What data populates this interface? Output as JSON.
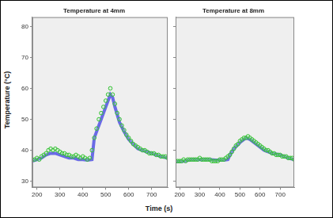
{
  "chart_data": [
    {
      "type": "scatter",
      "title": "Temperature at 4mm",
      "x_label": "Time (s)",
      "y_label": "Temperature (°C)",
      "xlim": [
        180,
        770
      ],
      "xticks": [
        200,
        300,
        400,
        500,
        600,
        700
      ],
      "ylim": [
        28,
        83
      ],
      "yticks": [
        30,
        40,
        50,
        60,
        70,
        80
      ],
      "grid": false,
      "series": [
        {
          "type": "scatter",
          "marker": "circle",
          "color": "#33c233",
          "x": [
            180,
            190,
            200,
            210,
            220,
            230,
            240,
            250,
            260,
            270,
            280,
            290,
            300,
            310,
            320,
            330,
            340,
            350,
            360,
            370,
            380,
            390,
            400,
            410,
            420,
            430,
            440,
            450,
            460,
            470,
            480,
            490,
            500,
            510,
            520,
            530,
            540,
            550,
            560,
            570,
            580,
            590,
            600,
            610,
            620,
            630,
            640,
            650,
            660,
            670,
            680,
            690,
            700,
            710,
            720,
            730,
            740,
            750,
            760,
            770
          ],
          "values": [
            37,
            37,
            37.5,
            37,
            38,
            38.5,
            39,
            40,
            40.5,
            40,
            40.5,
            40,
            39.5,
            39,
            39,
            38.5,
            38.5,
            38,
            38,
            38.5,
            38,
            37.5,
            38,
            37.5,
            37,
            37.5,
            40,
            44,
            47,
            50,
            52,
            54,
            56,
            58,
            60,
            58,
            55,
            52,
            50,
            48,
            46.5,
            45,
            44,
            43,
            42,
            41.5,
            41,
            40.5,
            40,
            40,
            39.5,
            39,
            39,
            39,
            38.5,
            38.5,
            38,
            38,
            38,
            37.5
          ]
        },
        {
          "type": "line",
          "line_style": "solid",
          "color": "#6a6ae6",
          "x": [
            180,
            200,
            220,
            240,
            260,
            280,
            300,
            320,
            340,
            360,
            380,
            400,
            420,
            440,
            450,
            460,
            480,
            500,
            520,
            530,
            540,
            560,
            580,
            600,
            620,
            640,
            660,
            680,
            700,
            720,
            740,
            770
          ],
          "values": [
            36.5,
            37,
            37.5,
            38.5,
            39,
            39,
            38.5,
            38,
            37.5,
            37.5,
            37,
            37,
            36.8,
            37,
            44,
            46,
            50,
            54,
            58,
            57,
            54,
            49,
            46,
            43.5,
            42,
            40.5,
            40,
            39.5,
            39,
            38.5,
            38,
            37.5
          ]
        }
      ]
    },
    {
      "type": "scatter",
      "title": "Temperature at 8mm",
      "xlim": [
        180,
        770
      ],
      "xticks": [
        200,
        300,
        400,
        500,
        600,
        700
      ],
      "ylim": [
        28,
        83
      ],
      "yticks": [
        30,
        40,
        50,
        60,
        70,
        80
      ],
      "grid": false,
      "tick_labels": "x",
      "series": [
        {
          "type": "scatter",
          "marker": "circle",
          "color": "#33c233",
          "x": [
            180,
            190,
            200,
            210,
            220,
            230,
            240,
            250,
            260,
            270,
            280,
            290,
            300,
            310,
            320,
            330,
            340,
            350,
            360,
            370,
            380,
            390,
            400,
            410,
            420,
            430,
            440,
            450,
            460,
            470,
            480,
            490,
            500,
            510,
            520,
            530,
            540,
            550,
            560,
            570,
            580,
            590,
            600,
            610,
            620,
            630,
            640,
            650,
            660,
            670,
            680,
            690,
            700,
            710,
            720,
            730,
            740,
            750,
            760,
            770
          ],
          "values": [
            36.5,
            36.5,
            36.5,
            36.5,
            37,
            36.5,
            37,
            37,
            37,
            37,
            37,
            37,
            37.5,
            37,
            37,
            37,
            37,
            37,
            36.5,
            36.5,
            36.5,
            36.5,
            37,
            37,
            37,
            37.5,
            38,
            38.5,
            39.5,
            40.5,
            41.5,
            42,
            43,
            43.5,
            44,
            44,
            44.5,
            44,
            43.5,
            43,
            42.5,
            42,
            41.5,
            41,
            40.5,
            40,
            40,
            39.5,
            39,
            39,
            38.5,
            38.5,
            38.5,
            38,
            38,
            38,
            37.5,
            37.5,
            37.5,
            37
          ]
        },
        {
          "type": "line",
          "line_style": "solid",
          "color": "#6a6ae6",
          "x": [
            180,
            220,
            260,
            300,
            340,
            380,
            420,
            440,
            450,
            470,
            500,
            530,
            550,
            580,
            620,
            660,
            700,
            740,
            770
          ],
          "values": [
            36.3,
            36.5,
            37,
            37,
            37,
            36.8,
            36.8,
            37,
            38.5,
            40.5,
            42.5,
            44,
            43.5,
            42,
            40,
            39,
            38.5,
            37.5,
            37
          ]
        }
      ]
    }
  ]
}
